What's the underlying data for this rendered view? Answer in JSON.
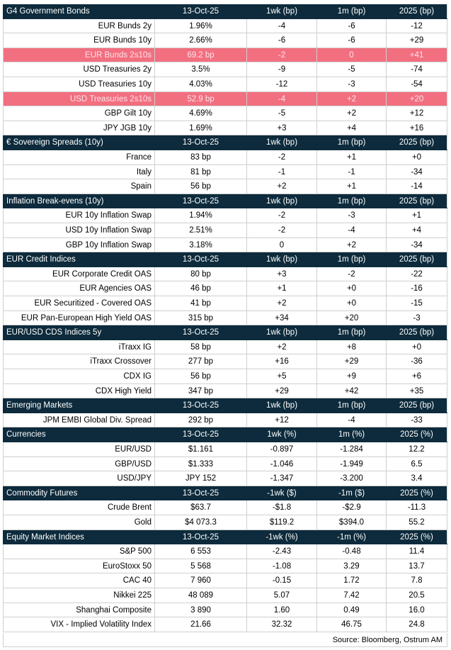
{
  "sections": [
    {
      "header": [
        "G4 Government Bonds",
        "13-Oct-25",
        "1wk (bp)",
        "1m (bp)",
        "2025 (bp)"
      ],
      "rows": [
        {
          "cells": [
            "EUR Bunds 2y",
            "1.96%",
            "-4",
            "-6",
            "-12"
          ]
        },
        {
          "cells": [
            "EUR Bunds 10y",
            "2.66%",
            "-6",
            "-6",
            "+29"
          ]
        },
        {
          "cells": [
            "EUR Bunds 2s10s",
            "69.2 bp",
            "-2",
            "0",
            "+41"
          ],
          "highlighted": true
        },
        {
          "cells": [
            "USD Treasuries 2y",
            "3.5%",
            "-9",
            "-5",
            "-74"
          ]
        },
        {
          "cells": [
            "USD Treasuries 10y",
            "4.03%",
            "-12",
            "-3",
            "-54"
          ]
        },
        {
          "cells": [
            "USD Treasuries 2s10s",
            "52.9 bp",
            "-4",
            "+2",
            "+20"
          ],
          "highlighted": true
        },
        {
          "cells": [
            "GBP Gilt 10y",
            "4.69%",
            "-5",
            "+2",
            "+12"
          ]
        },
        {
          "cells": [
            "JPY JGB  10y",
            "1.69%",
            "+3",
            "+4",
            "+16"
          ]
        }
      ]
    },
    {
      "header": [
        "€ Sovereign Spreads (10y)",
        "13-Oct-25",
        "1wk (bp)",
        "1m (bp)",
        "2025 (bp)"
      ],
      "rows": [
        {
          "cells": [
            "France",
            "83 bp",
            "-2",
            "+1",
            "+0"
          ]
        },
        {
          "cells": [
            "Italy",
            "81 bp",
            "-1",
            "-1",
            "-34"
          ]
        },
        {
          "cells": [
            "Spain",
            "56 bp",
            "+2",
            "+1",
            "-14"
          ]
        }
      ]
    },
    {
      "header": [
        "Inflation Break-evens (10y)",
        "13-Oct-25",
        "1wk (bp)",
        "1m (bp)",
        "2025 (bp)"
      ],
      "rows": [
        {
          "cells": [
            "EUR 10y Inflation Swap",
            "1.94%",
            "-2",
            "-3",
            "+1"
          ]
        },
        {
          "cells": [
            "USD 10y Inflation Swap",
            "2.51%",
            "-2",
            "-4",
            "+4"
          ]
        },
        {
          "cells": [
            "GBP 10y Inflation Swap",
            "3.18%",
            "0",
            "+2",
            "-34"
          ]
        }
      ]
    },
    {
      "header": [
        "EUR Credit Indices",
        "13-Oct-25",
        "1wk (bp)",
        "1m (bp)",
        "2025 (bp)"
      ],
      "rows": [
        {
          "cells": [
            "EUR Corporate Credit OAS",
            "80 bp",
            "+3",
            "-2",
            "-22"
          ]
        },
        {
          "cells": [
            "EUR Agencies OAS",
            "46 bp",
            "+1",
            "+0",
            "-16"
          ]
        },
        {
          "cells": [
            "EUR Securitized - Covered OAS",
            "41 bp",
            "+2",
            "+0",
            "-15"
          ]
        },
        {
          "cells": [
            "EUR Pan-European High Yield OAS",
            "315 bp",
            "+34",
            "+20",
            "-3"
          ]
        }
      ]
    },
    {
      "header": [
        "EUR/USD CDS Indices 5y",
        "13-Oct-25",
        "1wk (bp)",
        "1m (bp)",
        "2025 (bp)"
      ],
      "rows": [
        {
          "cells": [
            "iTraxx IG",
            "58 bp",
            "+2",
            "+8",
            "+0"
          ]
        },
        {
          "cells": [
            "iTraxx Crossover",
            "277 bp",
            "+16",
            "+29",
            "-36"
          ]
        },
        {
          "cells": [
            "CDX IG",
            "56 bp",
            "+5",
            "+9",
            "+6"
          ]
        },
        {
          "cells": [
            "CDX High Yield",
            "347 bp",
            "+29",
            "+42",
            "+35"
          ]
        }
      ]
    },
    {
      "header": [
        "Emerging Markets",
        "13-Oct-25",
        "1wk (bp)",
        "1m (bp)",
        "2025 (bp)"
      ],
      "rows": [
        {
          "cells": [
            "JPM EMBI Global Div. Spread",
            "292 bp",
            "+12",
            "-4",
            "-33"
          ]
        }
      ]
    },
    {
      "header": [
        "Currencies",
        "13-Oct-25",
        "1wk (%)",
        "1m (%)",
        "2025 (%)"
      ],
      "rows": [
        {
          "cells": [
            "EUR/USD",
            "$1.161",
            "-0.897",
            "-1.284",
            "12.2"
          ]
        },
        {
          "cells": [
            "GBP/USD",
            "$1.333",
            "-1.046",
            "-1.949",
            "6.5"
          ]
        },
        {
          "cells": [
            "USD/JPY",
            "JPY 152",
            "-1.347",
            "-3.200",
            "3.4"
          ]
        }
      ]
    },
    {
      "header": [
        "Commodity Futures",
        "13-Oct-25",
        "-1wk ($)",
        "-1m ($)",
        "2025 (%)"
      ],
      "rows": [
        {
          "cells": [
            "Crude Brent",
            "$63.7",
            "-$1.8",
            "-$2.9",
            "-11.3"
          ]
        },
        {
          "cells": [
            "Gold",
            "$4 073.3",
            "$119.2",
            "$394.0",
            "55.2"
          ]
        }
      ]
    },
    {
      "header": [
        "Equity Market Indices",
        "13-Oct-25",
        "-1wk (%)",
        "-1m (%)",
        "2025 (%)"
      ],
      "rows": [
        {
          "cells": [
            "S&P 500",
            "6 553",
            "-2.43",
            "-0.48",
            "11.4"
          ]
        },
        {
          "cells": [
            "EuroStoxx 50",
            "5 568",
            "-1.08",
            "3.29",
            "13.7"
          ]
        },
        {
          "cells": [
            "CAC 40",
            "7 960",
            "-0.15",
            "1.72",
            "7.8"
          ]
        },
        {
          "cells": [
            "Nikkei 225",
            "48 089",
            "5.07",
            "7.42",
            "20.5"
          ]
        },
        {
          "cells": [
            "Shanghai Composite",
            "3 890",
            "1.60",
            "0.49",
            "16.0"
          ]
        },
        {
          "cells": [
            "VIX - Implied Volatility Index",
            "21.66",
            "32.32",
            "46.75",
            "24.8"
          ]
        }
      ]
    }
  ],
  "source": "Source: Bloomberg, Ostrum AM"
}
